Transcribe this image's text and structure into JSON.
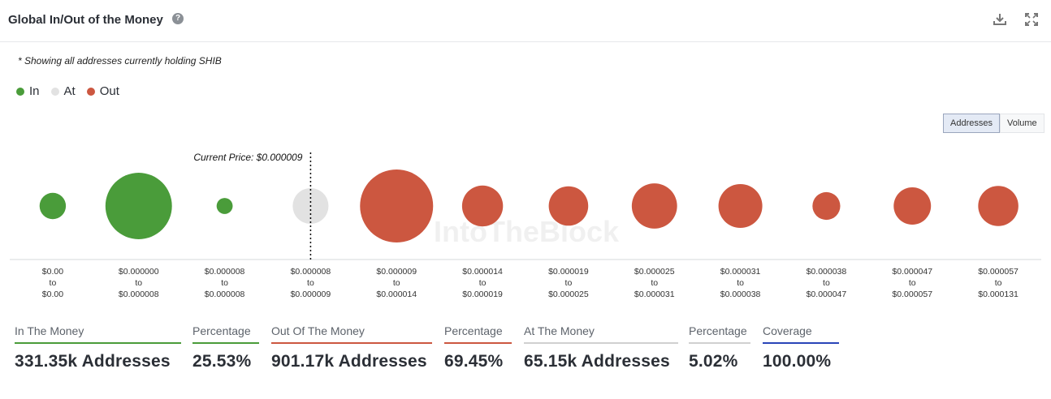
{
  "header": {
    "title": "Global In/Out of the Money",
    "help_icon": "question-circle-icon",
    "download_icon": "download-icon",
    "expand_icon": "expand-icon"
  },
  "subnote": "* Showing all addresses currently holding SHIB",
  "legend": [
    {
      "label": "In",
      "color": "#4a9c3a"
    },
    {
      "label": "At",
      "color": "#e2e2e2"
    },
    {
      "label": "Out",
      "color": "#cc5740"
    }
  ],
  "toggle": {
    "addresses": "Addresses",
    "volume": "Volume",
    "active": "Addresses"
  },
  "chart_data": {
    "type": "bubble",
    "current_price_label": "Current Price: $0.000009",
    "watermark": "IntoTheBlock",
    "colors": {
      "In": "#4a9c3a",
      "At": "#e2e2e2",
      "Out": "#cc5740"
    },
    "buckets": [
      {
        "lines": [
          "$0.00",
          "to",
          "$0.00"
        ],
        "status": "In",
        "relative_size": 0.36
      },
      {
        "lines": [
          "$0.000000",
          "to",
          "$0.000008"
        ],
        "status": "In",
        "relative_size": 0.91
      },
      {
        "lines": [
          "$0.000008",
          "to",
          "$0.000008"
        ],
        "status": "In",
        "relative_size": 0.22
      },
      {
        "lines": [
          "$0.000008",
          "to",
          "$0.000009"
        ],
        "status": "At",
        "relative_size": 0.49
      },
      {
        "lines": [
          "$0.000009",
          "to",
          "$0.000014"
        ],
        "status": "Out",
        "relative_size": 1.0
      },
      {
        "lines": [
          "$0.000014",
          "to",
          "$0.000019"
        ],
        "status": "Out",
        "relative_size": 0.56
      },
      {
        "lines": [
          "$0.000019",
          "to",
          "$0.000025"
        ],
        "status": "Out",
        "relative_size": 0.54
      },
      {
        "lines": [
          "$0.000025",
          "to",
          "$0.000031"
        ],
        "status": "Out",
        "relative_size": 0.62
      },
      {
        "lines": [
          "$0.000031",
          "to",
          "$0.000038"
        ],
        "status": "Out",
        "relative_size": 0.6
      },
      {
        "lines": [
          "$0.000038",
          "to",
          "$0.000047"
        ],
        "status": "Out",
        "relative_size": 0.38
      },
      {
        "lines": [
          "$0.000047",
          "to",
          "$0.000057"
        ],
        "status": "Out",
        "relative_size": 0.51
      },
      {
        "lines": [
          "$0.000057",
          "to",
          "$0.000131"
        ],
        "status": "Out",
        "relative_size": 0.55
      }
    ]
  },
  "stats": [
    {
      "label": "In The Money",
      "value": "331.35k Addresses",
      "color": "#4a9c3a"
    },
    {
      "label": "Percentage",
      "value": "25.53%",
      "color": "#4a9c3a"
    },
    {
      "label": "Out Of The Money",
      "value": "901.17k Addresses",
      "color": "#cc5740"
    },
    {
      "label": "Percentage",
      "value": "69.45%",
      "color": "#cc5740"
    },
    {
      "label": "At The Money",
      "value": "65.15k Addresses",
      "color": "#d0d0d0"
    },
    {
      "label": "Percentage",
      "value": "5.02%",
      "color": "#d0d0d0"
    },
    {
      "label": "Coverage",
      "value": "100.00%",
      "color": "#2a45b8"
    }
  ]
}
